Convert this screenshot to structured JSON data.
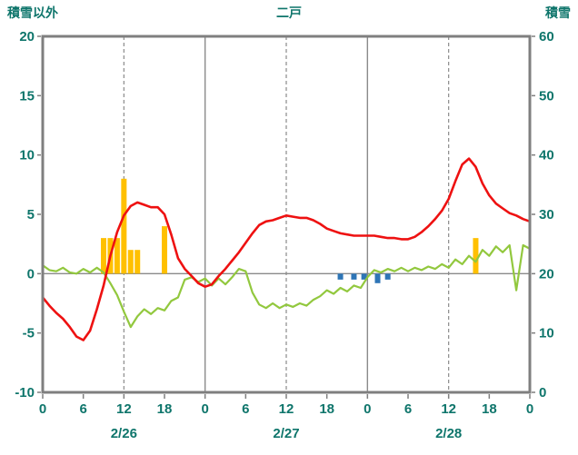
{
  "header": {
    "left_axis_title": "積雪以外",
    "title": "二戸",
    "right_axis_title": "積雪"
  },
  "colors": {
    "axis_text": "#0e756b",
    "grid": "#8a8a8a",
    "border": "#7f7f7f",
    "red_line": "#ee1111",
    "green_line": "#92c83e",
    "orange_bar": "#ffc000",
    "blue_bar": "#2e75b6",
    "purple_line": "#7030a0",
    "background": "#ffffff"
  },
  "chart_data": {
    "type": "line+bar combo",
    "title": "二戸",
    "x_unit": "hour",
    "x_total_hours": 72,
    "grid": "vertical solid at day boundaries, vertical dashed at 12h, horizontal solid at zero",
    "legend_position": "none",
    "left_axis": {
      "label": "積雪以外",
      "min": -10,
      "max": 20,
      "ticks": [
        20,
        15,
        10,
        5,
        0,
        -5,
        -10
      ]
    },
    "right_axis": {
      "label": "積雪",
      "min": 0,
      "max": 60,
      "ticks": [
        60,
        50,
        40,
        30,
        20,
        10,
        0
      ]
    },
    "x_axis": {
      "hour_ticks": [
        0,
        6,
        12,
        18,
        24,
        30,
        36,
        42,
        48,
        54,
        60,
        66,
        72
      ],
      "hour_labels": [
        "0",
        "6",
        "12",
        "18",
        "0",
        "6",
        "12",
        "18",
        "0",
        "6",
        "12",
        "18",
        "0"
      ],
      "day_labels": [
        {
          "label": "2/26",
          "hour": 12
        },
        {
          "label": "2/27",
          "hour": 36
        },
        {
          "label": "2/28",
          "hour": 60
        }
      ],
      "solid_gridline_hours": [
        24,
        48
      ],
      "dashed_gridline_hours": [
        12,
        36,
        60
      ]
    },
    "series": [
      {
        "name": "orange-bars",
        "type": "bar",
        "axis": "left",
        "color_key": "orange_bar",
        "bars": [
          [
            9,
            3
          ],
          [
            10,
            3
          ],
          [
            11,
            3
          ],
          [
            12,
            8
          ],
          [
            13,
            2
          ],
          [
            14,
            2
          ],
          [
            18,
            4
          ],
          [
            64,
            3
          ]
        ]
      },
      {
        "name": "blue-bars",
        "type": "bar",
        "axis": "left",
        "color_key": "blue_bar",
        "bars": [
          [
            44,
            -0.5
          ],
          [
            46,
            -0.5
          ],
          [
            47.5,
            -0.5
          ],
          [
            49.5,
            -0.8
          ],
          [
            51,
            -0.5
          ]
        ]
      },
      {
        "name": "purple-line",
        "type": "line",
        "axis": "left",
        "color_key": "purple_line",
        "stroke_width": 2.4,
        "points": [
          [
            0,
            -10
          ],
          [
            72,
            -10
          ]
        ]
      },
      {
        "name": "green-line",
        "type": "line",
        "axis": "left",
        "color_key": "green_line",
        "stroke_width": 2.2,
        "points": [
          [
            0,
            0.7
          ],
          [
            1,
            0.3
          ],
          [
            2,
            0.2
          ],
          [
            3,
            0.5
          ],
          [
            4,
            0.1
          ],
          [
            5,
            0
          ],
          [
            6,
            0.4
          ],
          [
            7,
            0.1
          ],
          [
            8,
            0.5
          ],
          [
            9,
            0.1
          ],
          [
            10,
            -0.8
          ],
          [
            11,
            -1.8
          ],
          [
            12,
            -3.2
          ],
          [
            13,
            -4.5
          ],
          [
            14,
            -3.6
          ],
          [
            15,
            -3
          ],
          [
            16,
            -3.4
          ],
          [
            17,
            -2.9
          ],
          [
            18,
            -3.1
          ],
          [
            19,
            -2.3
          ],
          [
            20,
            -2
          ],
          [
            21,
            -0.5
          ],
          [
            22,
            -0.3
          ],
          [
            23,
            -0.7
          ],
          [
            24,
            -0.4
          ],
          [
            25,
            -1
          ],
          [
            26,
            -0.4
          ],
          [
            27,
            -0.9
          ],
          [
            28,
            -0.3
          ],
          [
            29,
            0.4
          ],
          [
            30,
            0.2
          ],
          [
            31,
            -1.6
          ],
          [
            32,
            -2.6
          ],
          [
            33,
            -2.9
          ],
          [
            34,
            -2.5
          ],
          [
            35,
            -2.9
          ],
          [
            36,
            -2.6
          ],
          [
            37,
            -2.8
          ],
          [
            38,
            -2.5
          ],
          [
            39,
            -2.7
          ],
          [
            40,
            -2.2
          ],
          [
            41,
            -1.9
          ],
          [
            42,
            -1.4
          ],
          [
            43,
            -1.7
          ],
          [
            44,
            -1.2
          ],
          [
            45,
            -1.5
          ],
          [
            46,
            -1
          ],
          [
            47,
            -1.2
          ],
          [
            48,
            -0.3
          ],
          [
            49,
            0.3
          ],
          [
            50,
            0.1
          ],
          [
            51,
            0.4
          ],
          [
            52,
            0.2
          ],
          [
            53,
            0.5
          ],
          [
            54,
            0.2
          ],
          [
            55,
            0.5
          ],
          [
            56,
            0.3
          ],
          [
            57,
            0.6
          ],
          [
            58,
            0.4
          ],
          [
            59,
            0.8
          ],
          [
            60,
            0.5
          ],
          [
            61,
            1.2
          ],
          [
            62,
            0.8
          ],
          [
            63,
            1.5
          ],
          [
            64,
            1
          ],
          [
            65,
            2
          ],
          [
            66,
            1.5
          ],
          [
            67,
            2.3
          ],
          [
            68,
            1.8
          ],
          [
            69,
            2.4
          ],
          [
            70,
            -1.4
          ],
          [
            71,
            2.4
          ],
          [
            72,
            2.1
          ]
        ]
      },
      {
        "name": "red-line",
        "type": "line",
        "axis": "left",
        "color_key": "red_line",
        "stroke_width": 2.6,
        "points": [
          [
            0,
            -2
          ],
          [
            1,
            -2.7
          ],
          [
            2,
            -3.3
          ],
          [
            3,
            -3.8
          ],
          [
            4,
            -4.5
          ],
          [
            5,
            -5.3
          ],
          [
            6,
            -5.6
          ],
          [
            7,
            -4.8
          ],
          [
            8,
            -3
          ],
          [
            9,
            -1
          ],
          [
            10,
            1.5
          ],
          [
            11,
            3.5
          ],
          [
            12,
            4.9
          ],
          [
            13,
            5.7
          ],
          [
            14,
            6
          ],
          [
            15,
            5.8
          ],
          [
            16,
            5.6
          ],
          [
            17,
            5.6
          ],
          [
            18,
            5
          ],
          [
            19,
            3.3
          ],
          [
            20,
            1.3
          ],
          [
            21,
            0.4
          ],
          [
            22,
            -0.2
          ],
          [
            23,
            -0.8
          ],
          [
            24,
            -1.1
          ],
          [
            25,
            -0.9
          ],
          [
            26,
            -0.2
          ],
          [
            27,
            0.4
          ],
          [
            28,
            1.1
          ],
          [
            29,
            1.8
          ],
          [
            30,
            2.6
          ],
          [
            31,
            3.4
          ],
          [
            32,
            4.1
          ],
          [
            33,
            4.4
          ],
          [
            34,
            4.5
          ],
          [
            35,
            4.7
          ],
          [
            36,
            4.9
          ],
          [
            37,
            4.8
          ],
          [
            38,
            4.7
          ],
          [
            39,
            4.7
          ],
          [
            40,
            4.5
          ],
          [
            41,
            4.2
          ],
          [
            42,
            3.8
          ],
          [
            43,
            3.6
          ],
          [
            44,
            3.4
          ],
          [
            45,
            3.3
          ],
          [
            46,
            3.2
          ],
          [
            47,
            3.2
          ],
          [
            48,
            3.2
          ],
          [
            49,
            3.2
          ],
          [
            50,
            3.1
          ],
          [
            51,
            3
          ],
          [
            52,
            3
          ],
          [
            53,
            2.9
          ],
          [
            54,
            2.9
          ],
          [
            55,
            3.1
          ],
          [
            56,
            3.5
          ],
          [
            57,
            4
          ],
          [
            58,
            4.6
          ],
          [
            59,
            5.3
          ],
          [
            60,
            6.3
          ],
          [
            61,
            7.8
          ],
          [
            62,
            9.2
          ],
          [
            63,
            9.7
          ],
          [
            64,
            9
          ],
          [
            65,
            7.6
          ],
          [
            66,
            6.6
          ],
          [
            67,
            5.9
          ],
          [
            68,
            5.5
          ],
          [
            69,
            5.1
          ],
          [
            70,
            4.9
          ],
          [
            71,
            4.6
          ],
          [
            72,
            4.4
          ]
        ]
      }
    ]
  }
}
